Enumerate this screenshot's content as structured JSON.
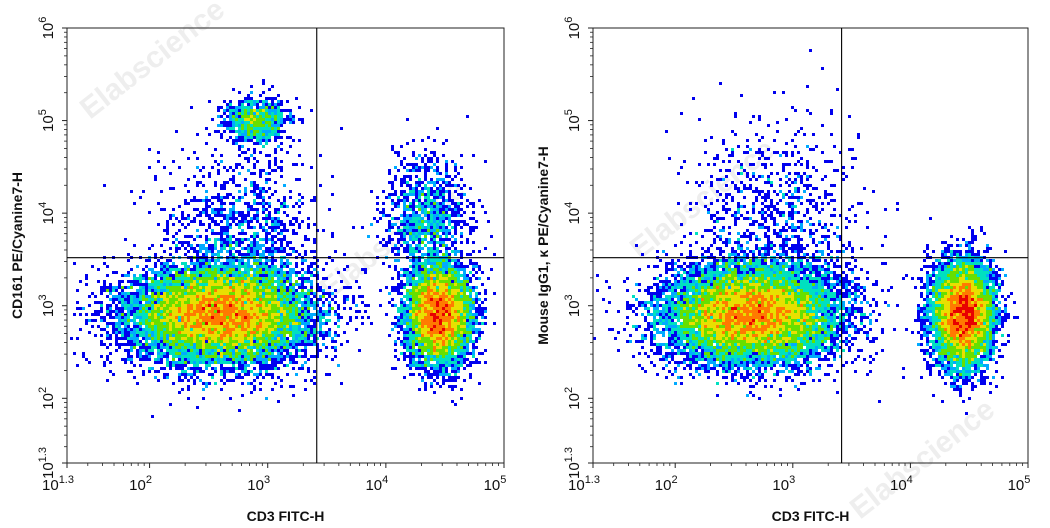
{
  "colors": {
    "density_scale": [
      "#0000ee",
      "#00aaff",
      "#00e0c0",
      "#66e000",
      "#e8e000",
      "#ff7a00",
      "#e80000"
    ],
    "gate": "#000000"
  },
  "watermark": "Elabscience",
  "chart_data": [
    {
      "type": "scatter",
      "subtype": "flow-cytometry-density",
      "xlabel": "CD3 FITC-H",
      "ylabel": "CD161 PE/Cyanine7-H",
      "x_scale": "log",
      "y_scale": "log",
      "xlim": [
        20,
        100000
      ],
      "ylim": [
        20,
        1000000
      ],
      "x_ticks": [
        {
          "base": "10",
          "exp": "1.3",
          "value": 20
        },
        {
          "base": "10",
          "exp": "2",
          "value": 100
        },
        {
          "base": "10",
          "exp": "3",
          "value": 1000
        },
        {
          "base": "10",
          "exp": "4",
          "value": 10000
        },
        {
          "base": "10",
          "exp": "5",
          "value": 100000
        }
      ],
      "y_ticks": [
        {
          "base": "10",
          "exp": "1.3",
          "value": 20
        },
        {
          "base": "10",
          "exp": "2",
          "value": 100
        },
        {
          "base": "10",
          "exp": "3",
          "value": 1000
        },
        {
          "base": "10",
          "exp": "4",
          "value": 10000
        },
        {
          "base": "10",
          "exp": "5",
          "value": 100000
        },
        {
          "base": "10",
          "exp": "6",
          "value": 1000000
        }
      ],
      "quadrant_gate": {
        "x": 2600,
        "y": 3300
      },
      "populations": [
        {
          "center_x": 400,
          "center_y": 800,
          "spread_log_x": 0.38,
          "spread_log_y": 0.26,
          "weight": 0.58
        },
        {
          "center_x": 28000,
          "center_y": 800,
          "spread_log_x": 0.14,
          "spread_log_y": 0.27,
          "weight": 0.28
        },
        {
          "center_x": 800,
          "center_y": 100000,
          "spread_log_x": 0.13,
          "spread_log_y": 0.12,
          "weight": 0.04
        },
        {
          "center_x": 22000,
          "center_y": 9000,
          "spread_log_x": 0.18,
          "spread_log_y": 0.32,
          "weight": 0.05
        },
        {
          "center_x": 600,
          "center_y": 6000,
          "spread_log_x": 0.3,
          "spread_log_y": 0.45,
          "weight": 0.05
        }
      ]
    },
    {
      "type": "scatter",
      "subtype": "flow-cytometry-density",
      "xlabel": "CD3 FITC-H",
      "ylabel": "Mouse IgG1, κ PE/Cyanine7-H",
      "x_scale": "log",
      "y_scale": "log",
      "xlim": [
        20,
        100000
      ],
      "ylim": [
        20,
        1000000
      ],
      "x_ticks": [
        {
          "base": "10",
          "exp": "1.3",
          "value": 20
        },
        {
          "base": "10",
          "exp": "2",
          "value": 100
        },
        {
          "base": "10",
          "exp": "3",
          "value": 1000
        },
        {
          "base": "10",
          "exp": "4",
          "value": 10000
        },
        {
          "base": "10",
          "exp": "5",
          "value": 100000
        }
      ],
      "y_ticks": [
        {
          "base": "10",
          "exp": "1.3",
          "value": 20
        },
        {
          "base": "10",
          "exp": "2",
          "value": 100
        },
        {
          "base": "10",
          "exp": "3",
          "value": 1000
        },
        {
          "base": "10",
          "exp": "4",
          "value": 10000
        },
        {
          "base": "10",
          "exp": "5",
          "value": 100000
        },
        {
          "base": "10",
          "exp": "6",
          "value": 1000000
        }
      ],
      "quadrant_gate": {
        "x": 2600,
        "y": 3300
      },
      "populations": [
        {
          "center_x": 450,
          "center_y": 800,
          "spread_log_x": 0.36,
          "spread_log_y": 0.26,
          "weight": 0.62
        },
        {
          "center_x": 28000,
          "center_y": 800,
          "spread_log_x": 0.13,
          "spread_log_y": 0.28,
          "weight": 0.34
        },
        {
          "center_x": 700,
          "center_y": 8000,
          "spread_log_x": 0.35,
          "spread_log_y": 0.55,
          "weight": 0.04
        }
      ]
    }
  ]
}
